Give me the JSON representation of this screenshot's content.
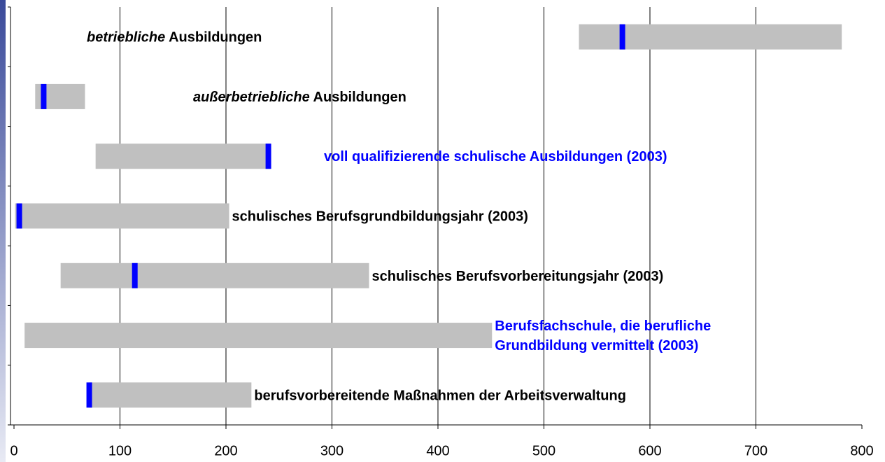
{
  "chart_data": {
    "type": "range-bar",
    "labels": [
      {
        "parts": [
          [
            {
              "text": "betriebliche",
              "italic": true
            },
            {
              "text": " Ausbildungen"
            }
          ]
        ],
        "color": "#000000"
      },
      {
        "parts": [
          [
            {
              "text": "außerbetriebliche",
              "italic": true
            },
            {
              "text": " Ausbildungen"
            }
          ]
        ],
        "color": "#000000"
      },
      {
        "parts": [
          [
            {
              "text": "voll qualifizierende schulische Ausbildungen (2003)"
            }
          ]
        ],
        "color": "#0000ff"
      },
      {
        "parts": [
          [
            {
              "text": "schulisches Berufsgrundbildungsjahr (2003)"
            }
          ]
        ],
        "color": "#000000"
      },
      {
        "parts": [
          [
            {
              "text": "schulisches Berufsvorbereitungsjahr (2003)"
            }
          ]
        ],
        "color": "#000000"
      },
      {
        "parts": [
          [
            {
              "text": "Berufsfachschule, die berufliche"
            }
          ],
          [
            {
              "text": "Grundbildung vermittelt (2003)"
            }
          ]
        ],
        "color": "#0000ff"
      },
      {
        "parts": [
          [
            {
              "text": "berufsvorbereitende Maßnahmen der Arbeitsverwaltung"
            }
          ]
        ],
        "color": "#000000"
      }
    ],
    "low": [
      533,
      20,
      77,
      1,
      44,
      10,
      71
    ],
    "high": [
      781,
      67,
      242,
      203,
      335,
      451,
      224
    ],
    "marker": [
      574,
      28,
      240,
      5,
      114,
      null,
      71
    ],
    "bar_color": "#c0c0c0",
    "marker_color": "#0000ff",
    "xlim": [
      0,
      800
    ],
    "xticks": [
      0,
      100,
      200,
      300,
      400,
      500,
      600,
      700,
      800
    ],
    "grid": true
  }
}
